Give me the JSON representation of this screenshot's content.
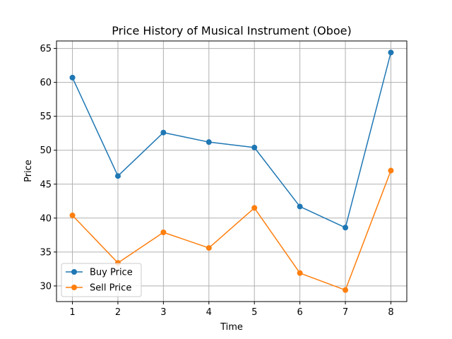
{
  "chart_data": {
    "type": "line",
    "title": "Price History of Musical Instrument (Oboe)",
    "xlabel": "Time",
    "ylabel": "Price",
    "x": [
      1,
      2,
      3,
      4,
      5,
      6,
      7,
      8
    ],
    "xlim": [
      0.65,
      8.35
    ],
    "ylim": [
      27.7,
      66.1
    ],
    "xticks": [
      1,
      2,
      3,
      4,
      5,
      6,
      7,
      8
    ],
    "yticks": [
      30,
      35,
      40,
      45,
      50,
      55,
      60,
      65
    ],
    "grid": true,
    "legend_position": "lower-left",
    "series": [
      {
        "name": "Buy Price",
        "color": "#1f77b4",
        "marker": "circle",
        "values": [
          60.7,
          46.2,
          52.6,
          51.2,
          50.4,
          41.7,
          38.6,
          64.4
        ]
      },
      {
        "name": "Sell Price",
        "color": "#ff7f0e",
        "marker": "circle",
        "values": [
          40.4,
          33.4,
          37.9,
          35.6,
          41.5,
          31.9,
          29.4,
          47.0
        ]
      }
    ]
  }
}
